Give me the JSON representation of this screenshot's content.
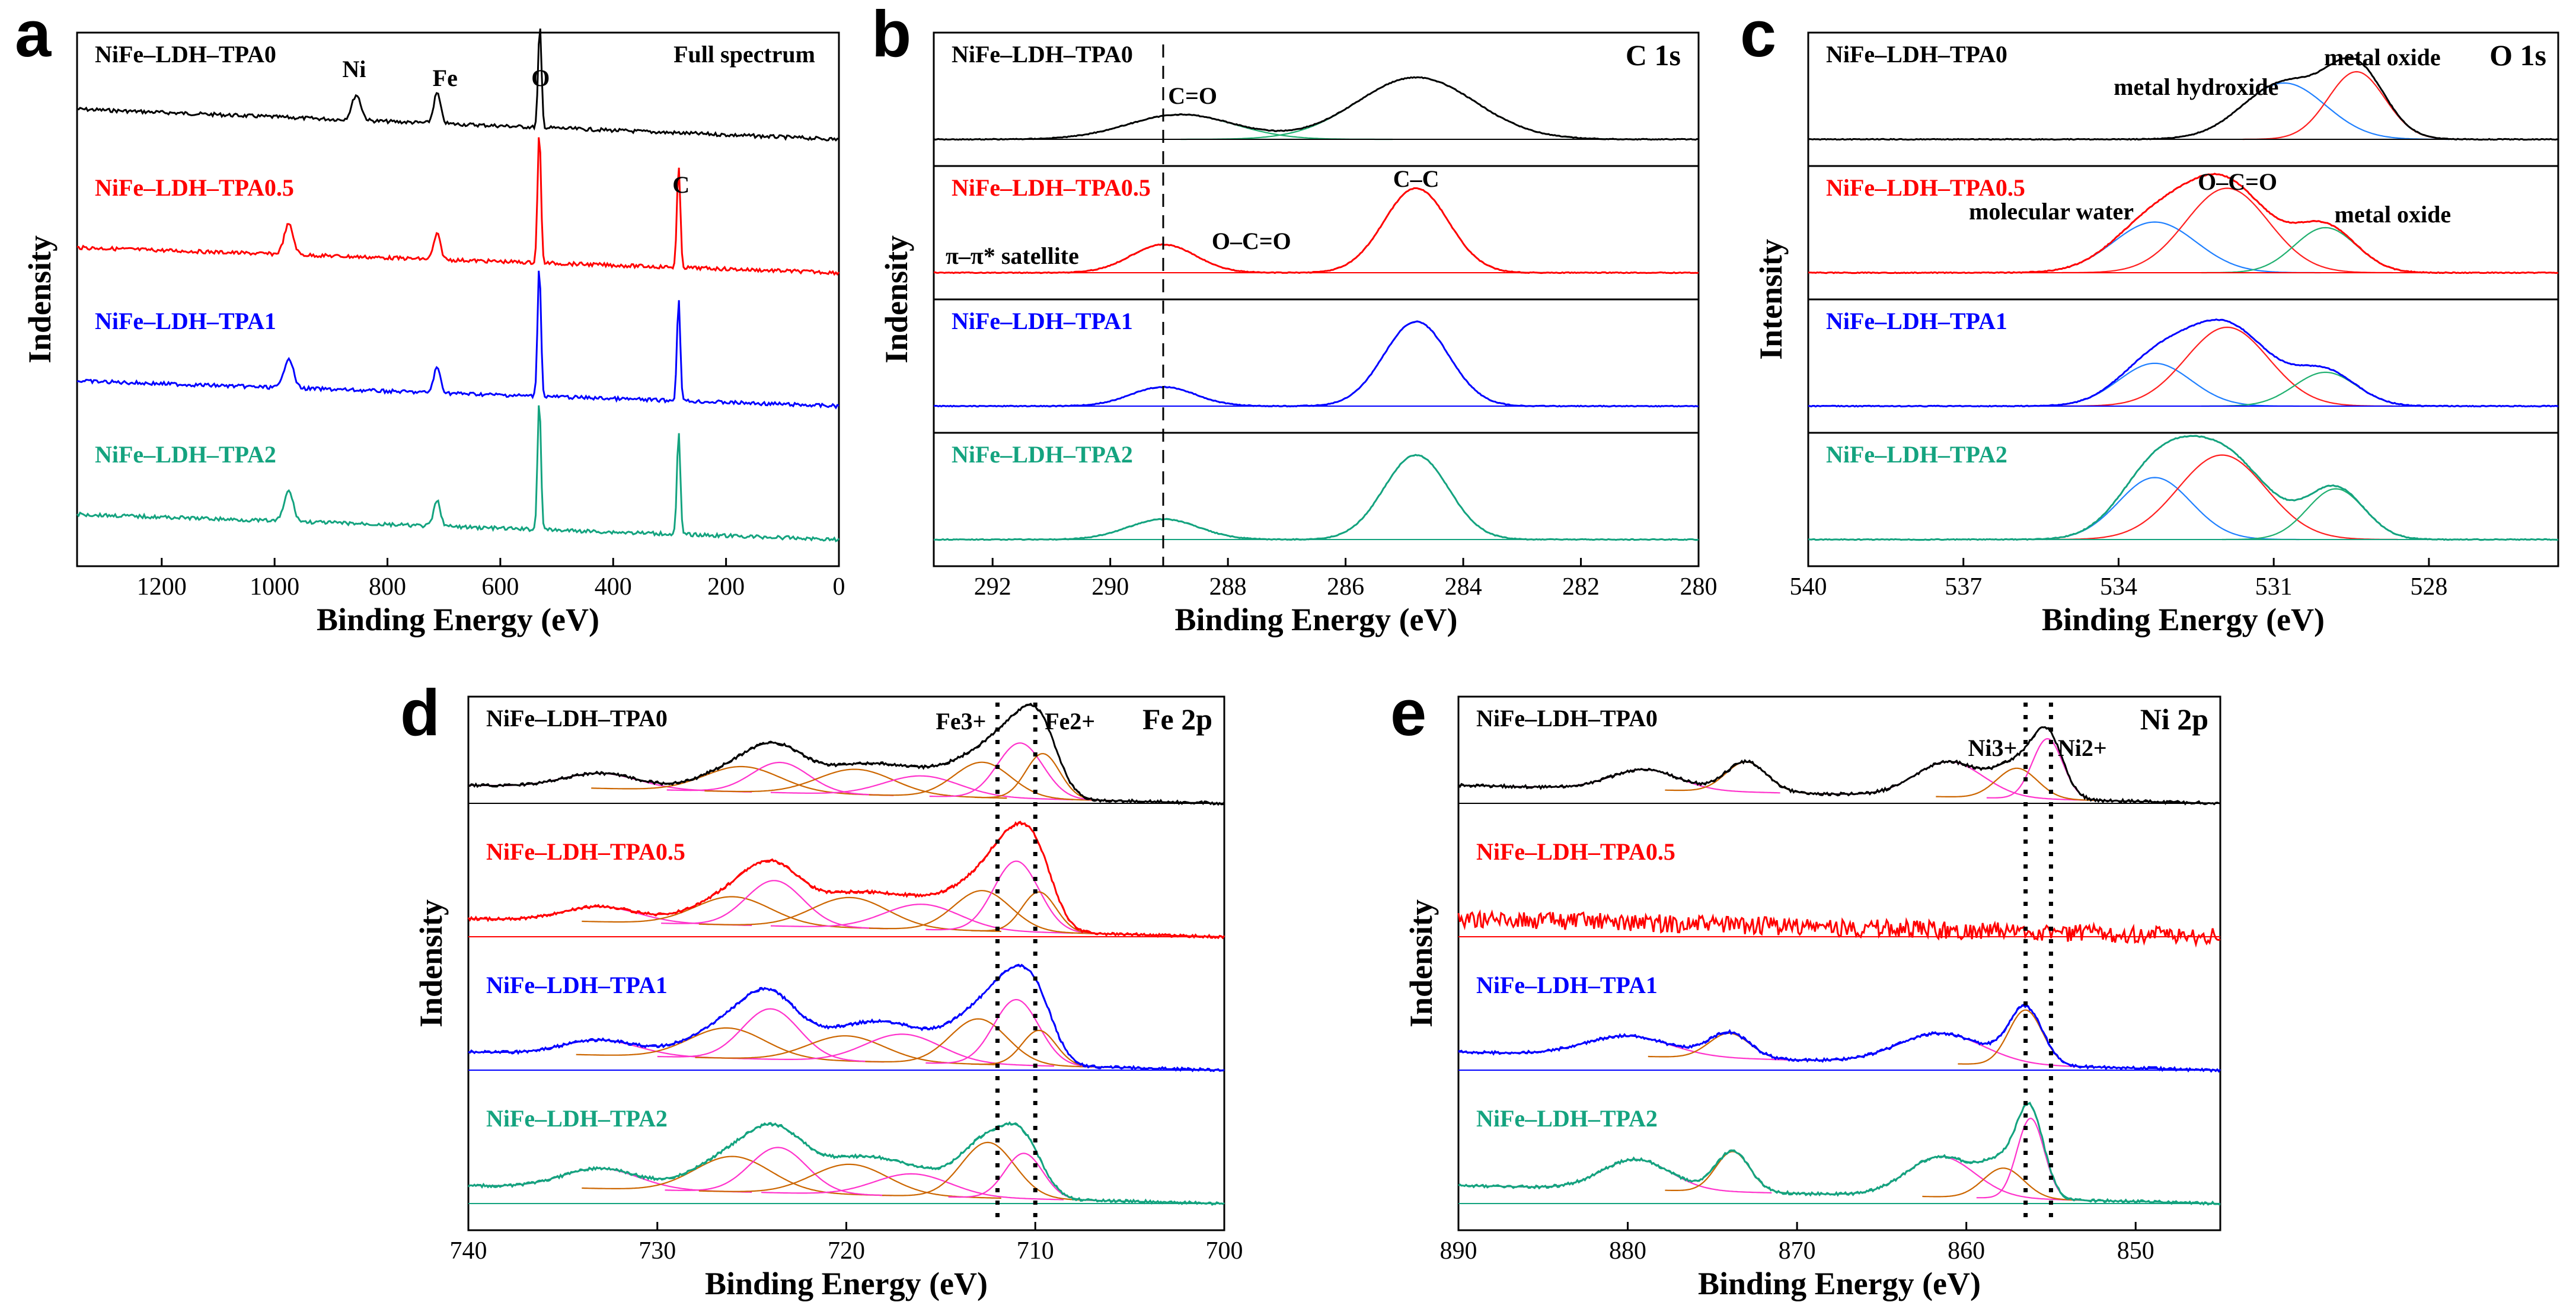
{
  "colors": {
    "tpa0": "#000000",
    "tpa05": "#ff0000",
    "tpa1": "#0000ff",
    "tpa2": "#14a37f",
    "fit_pink": "#ff33cc",
    "fit_orange": "#cc6600",
    "fit_red": "#ff2020",
    "fit_green": "#20b070",
    "fit_blue": "#2080ff"
  },
  "chart_data": [
    {
      "id": "a",
      "type": "line",
      "panel_letter": "a",
      "xlabel": "Binding Energy (eV)",
      "ylabel": "Indensity",
      "xlim": [
        1350,
        0
      ],
      "xticks": [
        "1200",
        "1000",
        "800",
        "600",
        "400",
        "200",
        "0"
      ],
      "tick_values": [
        1200,
        1000,
        800,
        600,
        400,
        200,
        0
      ],
      "annotations": {
        "title": "Full spectrum",
        "ni": "Ni",
        "fe": "Fe",
        "o": "O",
        "c": "C"
      },
      "series": [
        {
          "name": "NiFe–LDH–TPA0",
          "baseline": 3,
          "peaks": [
            [
              855,
              0.25,
              8
            ],
            [
              712,
              0.3,
              6
            ],
            [
              530,
              1.0,
              3
            ]
          ],
          "slope": 0.6
        },
        {
          "name": "NiFe–LDH–TPA0.5",
          "baseline": 2,
          "peaks": [
            [
              975,
              0.3,
              8
            ],
            [
              712,
              0.25,
              6
            ],
            [
              531,
              1.3,
              3
            ],
            [
              284,
              1.0,
              3
            ]
          ],
          "slope": 0.5
        },
        {
          "name": "NiFe–LDH–TPA1",
          "baseline": 1,
          "peaks": [
            [
              975,
              0.3,
              8
            ],
            [
              712,
              0.25,
              6
            ],
            [
              531,
              1.3,
              3
            ],
            [
              284,
              1.0,
              3
            ]
          ],
          "slope": 0.5
        },
        {
          "name": "NiFe–LDH–TPA2",
          "baseline": 0,
          "peaks": [
            [
              975,
              0.3,
              8
            ],
            [
              712,
              0.25,
              6
            ],
            [
              531,
              1.3,
              3
            ],
            [
              284,
              1.0,
              3
            ]
          ],
          "slope": 0.5
        }
      ]
    },
    {
      "id": "b",
      "type": "line",
      "panel_letter": "b",
      "xlabel": "Binding Energy (eV)",
      "ylabel": "Indensity",
      "xlim": [
        293,
        280
      ],
      "xticks": [
        "292",
        "290",
        "288",
        "286",
        "284",
        "282",
        "280"
      ],
      "tick_values": [
        292,
        290,
        288,
        286,
        284,
        282,
        280
      ],
      "dashed_line_at": 289.1,
      "annotations": {
        "title": "C 1s",
        "co": "C=O",
        "cc": "C–C",
        "oco": "O–C=O",
        "sat": "π–π* satellite"
      },
      "series": [
        {
          "name": "NiFe–LDH–TPA0",
          "baseline": 3,
          "peaks": [
            [
              288.8,
              0.22,
              0.9
            ],
            [
              284.8,
              0.55,
              1.0
            ]
          ]
        },
        {
          "name": "NiFe–LDH–TPA0.5",
          "baseline": 2,
          "peaks": [
            [
              289.1,
              0.25,
              0.55
            ],
            [
              284.8,
              0.75,
              0.55
            ]
          ]
        },
        {
          "name": "NiFe–LDH–TPA1",
          "baseline": 1,
          "peaks": [
            [
              289.1,
              0.17,
              0.55
            ],
            [
              284.8,
              0.75,
              0.55
            ]
          ]
        },
        {
          "name": "NiFe–LDH–TPA2",
          "baseline": 0,
          "peaks": [
            [
              289.1,
              0.18,
              0.6
            ],
            [
              284.8,
              0.75,
              0.55
            ]
          ]
        }
      ]
    },
    {
      "id": "c",
      "type": "line",
      "panel_letter": "c",
      "xlabel": "Binding Energy (eV)",
      "ylabel": "Intensity",
      "xlim": [
        540,
        525.5
      ],
      "xticks": [
        "540",
        "537",
        "534",
        "531",
        "528"
      ],
      "tick_values": [
        540,
        537,
        534,
        531,
        528
      ],
      "annotations": {
        "title": "O 1s",
        "mh": "metal hydroxide",
        "mo1": "metal oxide",
        "mw": "molecular water",
        "oco": "O–C=O",
        "mo2": "metal oxide"
      },
      "series": [
        {
          "name": "NiFe–LDH–TPA0",
          "baseline": 3,
          "peaks": [
            [
              530.8,
              0.5,
              0.8
            ],
            [
              529.4,
              0.6,
              0.55
            ]
          ]
        },
        {
          "name": "NiFe–LDH–TPA0.5",
          "baseline": 2,
          "peaks": [
            [
              533.3,
              0.45,
              0.8
            ],
            [
              531.9,
              0.75,
              0.8
            ],
            [
              530.0,
              0.4,
              0.6
            ]
          ]
        },
        {
          "name": "NiFe–LDH–TPA1",
          "baseline": 1,
          "peaks": [
            [
              533.3,
              0.38,
              0.7
            ],
            [
              531.9,
              0.7,
              0.8
            ],
            [
              530.0,
              0.3,
              0.6
            ]
          ]
        },
        {
          "name": "NiFe–LDH–TPA2",
          "baseline": 0,
          "peaks": [
            [
              533.3,
              0.55,
              0.7
            ],
            [
              532.0,
              0.75,
              0.85
            ],
            [
              529.8,
              0.45,
              0.55
            ]
          ]
        }
      ]
    },
    {
      "id": "d",
      "type": "line",
      "panel_letter": "d",
      "xlabel": "Binding Energy (eV)",
      "ylabel": "Indensity",
      "xlim": [
        740,
        700
      ],
      "xticks": [
        "740",
        "730",
        "720",
        "710",
        "700"
      ],
      "tick_values": [
        740,
        730,
        720,
        710,
        700
      ],
      "dotted_lines_at": [
        712.0,
        710.0
      ],
      "annotations": {
        "title": "Fe 2p",
        "fe3": "Fe3+",
        "fe2": "Fe2+"
      },
      "series": [
        {
          "name": "NiFe–LDH–TPA0",
          "baseline": 3,
          "peaks": [
            [
              733,
              0.15,
              2.0
            ],
            [
              725.5,
              0.25,
              2.0
            ],
            [
              723.5,
              0.3,
              1.5
            ],
            [
              719.5,
              0.25,
              2.0
            ],
            [
              716,
              0.2,
              2.0
            ],
            [
              712.8,
              0.35,
              1.5
            ],
            [
              710.8,
              0.55,
              1.2
            ],
            [
              709.6,
              0.45,
              0.9
            ]
          ]
        },
        {
          "name": "NiFe–LDH–TPA0.5",
          "baseline": 2,
          "peaks": [
            [
              733,
              0.15,
              2.0
            ],
            [
              726,
              0.28,
              2.0
            ],
            [
              723.8,
              0.45,
              1.5
            ],
            [
              719.8,
              0.3,
              2.0
            ],
            [
              716,
              0.25,
              2.0
            ],
            [
              712.8,
              0.4,
              1.5
            ],
            [
              711.0,
              0.7,
              1.2
            ],
            [
              709.8,
              0.4,
              0.9
            ]
          ]
        },
        {
          "name": "NiFe–LDH–TPA1",
          "baseline": 1,
          "peaks": [
            [
              733,
              0.15,
              2.0
            ],
            [
              726.3,
              0.3,
              2.0
            ],
            [
              724,
              0.5,
              1.5
            ],
            [
              720,
              0.25,
              2.0
            ],
            [
              717,
              0.28,
              2.0
            ],
            [
              713,
              0.45,
              1.5
            ],
            [
              711.0,
              0.65,
              1.2
            ],
            [
              709.8,
              0.35,
              0.9
            ]
          ]
        },
        {
          "name": "NiFe–LDH–TPA2",
          "baseline": 0,
          "peaks": [
            [
              733,
              0.2,
              2.0
            ],
            [
              726,
              0.35,
              2.0
            ],
            [
              723.6,
              0.45,
              1.5
            ],
            [
              719.8,
              0.3,
              2.0
            ],
            [
              716.5,
              0.22,
              2.0
            ],
            [
              712.5,
              0.55,
              1.4
            ],
            [
              710.6,
              0.45,
              1.0
            ]
          ]
        }
      ]
    },
    {
      "id": "e",
      "type": "line",
      "panel_letter": "e",
      "xlabel": "Binding Energy (eV)",
      "ylabel": "Indensity",
      "xlim": [
        890,
        845
      ],
      "xticks": [
        "890",
        "880",
        "870",
        "860",
        "850"
      ],
      "tick_values": [
        890,
        880,
        870,
        860,
        850
      ],
      "dotted_lines_at": [
        856.5,
        855.0
      ],
      "annotations": {
        "title": "Ni 2p",
        "ni3": "Ni3+",
        "ni2": "Ni2+"
      },
      "series": [
        {
          "name": "NiFe–LDH–TPA0",
          "baseline": 3,
          "peaks": [
            [
              879,
              0.2,
              2.0
            ],
            [
              873,
              0.3,
              1.2
            ],
            [
              861,
              0.35,
              2.0
            ],
            [
              857,
              0.3,
              1.2
            ],
            [
              855.2,
              0.6,
              0.9
            ]
          ]
        },
        {
          "name": "NiFe–LDH–TPA0.5",
          "baseline": 2,
          "peaks": []
        },
        {
          "name": "NiFe–LDH–TPA1",
          "baseline": 1,
          "peaks": [
            [
              880,
              0.2,
              2.5
            ],
            [
              874,
              0.25,
              1.2
            ],
            [
              861.5,
              0.3,
              2.5
            ],
            [
              856.5,
              0.55,
              1.0
            ]
          ]
        },
        {
          "name": "NiFe–LDH–TPA2",
          "baseline": 0,
          "peaks": [
            [
              879.5,
              0.3,
              2.0
            ],
            [
              873.8,
              0.4,
              1.0
            ],
            [
              861.5,
              0.4,
              2.0
            ],
            [
              857.8,
              0.3,
              1.2
            ],
            [
              856.2,
              0.8,
              0.8
            ]
          ]
        }
      ]
    }
  ]
}
